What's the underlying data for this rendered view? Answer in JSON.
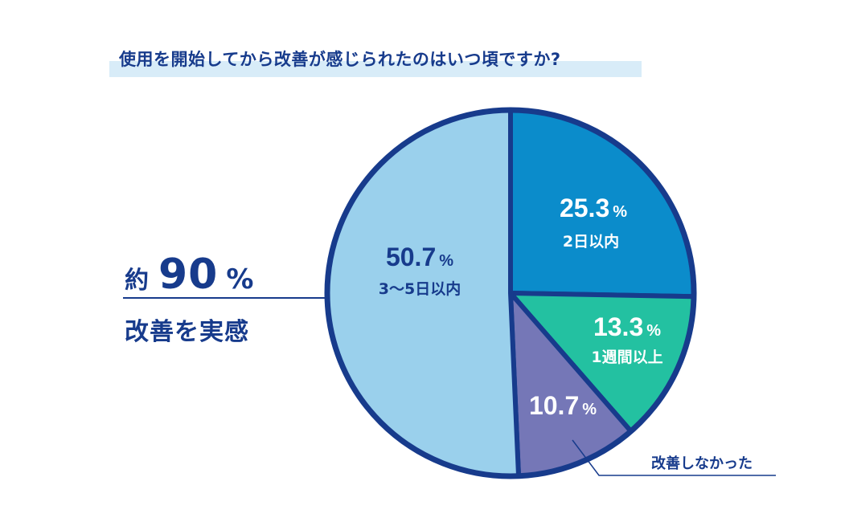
{
  "title": "使用を開始してから改善が感じられたのはいつ頃ですか?",
  "callout": {
    "prefix": "約",
    "value": "90",
    "unit": "%",
    "caption": "改善を実感"
  },
  "annotation": "改善しなかった",
  "chart_data": {
    "type": "pie",
    "start": "12 o'clock",
    "direction": "clockwise",
    "slices": [
      {
        "label": "2日以内",
        "value": 25.3,
        "value_text": "25.3",
        "unit": "%",
        "color": "#0b8ccb",
        "text_color": "#ffffff"
      },
      {
        "label": "1週間以上",
        "value": 13.3,
        "value_text": "13.3",
        "unit": "%",
        "color": "#23c1a1",
        "text_color": "#ffffff"
      },
      {
        "label": "",
        "value": 10.7,
        "value_text": "10.7",
        "unit": "%",
        "color": "#7577b7",
        "text_color": "#ffffff"
      },
      {
        "label": "3〜5日以内",
        "value": 50.7,
        "value_text": "50.7",
        "unit": "%",
        "color": "#9ad0ec",
        "text_color": "#173b8c"
      }
    ],
    "border_color": "#173b8c"
  }
}
